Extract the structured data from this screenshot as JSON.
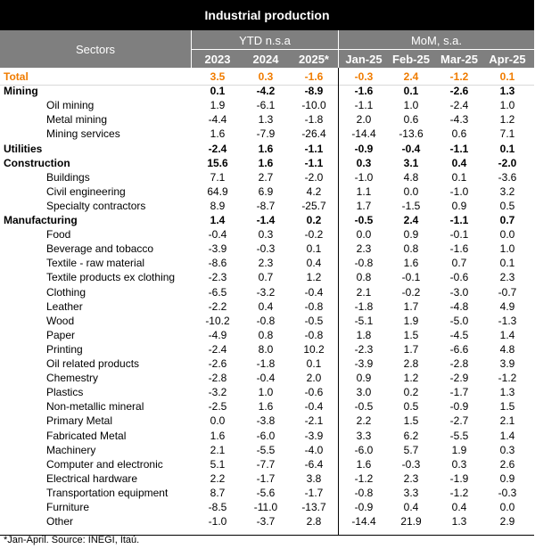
{
  "title": "Industrial production",
  "header": {
    "sectors_label": "Sectors",
    "ytd_label": "YTD n.s.a",
    "mom_label": "MoM, s.a.",
    "ytd_years": [
      "2023",
      "2024",
      "2025*"
    ],
    "mom_months": [
      "Jan-25",
      "Feb-25",
      "Mar-25",
      "Apr-25"
    ]
  },
  "colors": {
    "header_bg": "#7f7f7f",
    "title_bg": "#000000",
    "total_text": "#f07c00"
  },
  "rows": [
    {
      "name": "Total",
      "style": "total",
      "vals": [
        "3.5",
        "0.3",
        "-1.6",
        "-0.3",
        "2.4",
        "-1.2",
        "0.1"
      ]
    },
    {
      "name": "Mining",
      "style": "bold",
      "vals": [
        "0.1",
        "-4.2",
        "-8.9",
        "-1.6",
        "0.1",
        "-2.6",
        "1.3"
      ]
    },
    {
      "name": "Oil mining",
      "style": "sub",
      "vals": [
        "1.9",
        "-6.1",
        "-10.0",
        "-1.1",
        "1.0",
        "-2.4",
        "1.0"
      ]
    },
    {
      "name": "Metal mining",
      "style": "sub",
      "vals": [
        "-4.4",
        "1.3",
        "-1.8",
        "2.0",
        "0.6",
        "-4.3",
        "1.2"
      ]
    },
    {
      "name": "Mining services",
      "style": "sub",
      "vals": [
        "1.6",
        "-7.9",
        "-26.4",
        "-14.4",
        "-13.6",
        "0.6",
        "7.1"
      ]
    },
    {
      "name": "Utilities",
      "style": "bold",
      "vals": [
        "-2.4",
        "1.6",
        "-1.1",
        "-0.9",
        "-0.4",
        "-1.1",
        "0.1"
      ]
    },
    {
      "name": "Construction",
      "style": "bold",
      "vals": [
        "15.6",
        "1.6",
        "-1.1",
        "0.3",
        "3.1",
        "0.4",
        "-2.0"
      ]
    },
    {
      "name": "Buildings",
      "style": "sub",
      "vals": [
        "7.1",
        "2.7",
        "-2.0",
        "-1.0",
        "4.8",
        "0.1",
        "-3.6"
      ]
    },
    {
      "name": "Civil engineering",
      "style": "sub",
      "vals": [
        "64.9",
        "6.9",
        "4.2",
        "1.1",
        "0.0",
        "-1.0",
        "3.2"
      ]
    },
    {
      "name": "Specialty contractors",
      "style": "sub",
      "vals": [
        "8.9",
        "-8.7",
        "-25.7",
        "1.7",
        "-1.5",
        "0.9",
        "0.5"
      ]
    },
    {
      "name": "Manufacturing",
      "style": "bold",
      "vals": [
        "1.4",
        "-1.4",
        "0.2",
        "-0.5",
        "2.4",
        "-1.1",
        "0.7"
      ]
    },
    {
      "name": "Food",
      "style": "sub",
      "vals": [
        "-0.4",
        "0.3",
        "-0.2",
        "0.0",
        "0.9",
        "-0.1",
        "0.0"
      ]
    },
    {
      "name": "Beverage and tobacco",
      "style": "sub",
      "vals": [
        "-3.9",
        "-0.3",
        "0.1",
        "2.3",
        "0.8",
        "-1.6",
        "1.0"
      ]
    },
    {
      "name": "Textile - raw material",
      "style": "sub",
      "vals": [
        "-8.6",
        "2.3",
        "0.4",
        "-0.8",
        "1.6",
        "0.7",
        "0.1"
      ]
    },
    {
      "name": "Textile products ex clothing",
      "style": "sub",
      "vals": [
        "-2.3",
        "0.7",
        "1.2",
        "0.8",
        "-0.1",
        "-0.6",
        "2.3"
      ]
    },
    {
      "name": "Clothing",
      "style": "sub",
      "vals": [
        "-6.5",
        "-3.2",
        "-0.4",
        "2.1",
        "-0.2",
        "-3.0",
        "-0.7"
      ]
    },
    {
      "name": "Leather",
      "style": "sub",
      "vals": [
        "-2.2",
        "0.4",
        "-0.8",
        "-1.8",
        "1.7",
        "-4.8",
        "4.9"
      ]
    },
    {
      "name": "Wood",
      "style": "sub",
      "vals": [
        "-10.2",
        "-0.8",
        "-0.5",
        "-5.1",
        "1.9",
        "-5.0",
        "-1.3"
      ]
    },
    {
      "name": "Paper",
      "style": "sub",
      "vals": [
        "-4.9",
        "0.8",
        "-0.8",
        "1.8",
        "1.5",
        "-4.5",
        "1.4"
      ]
    },
    {
      "name": "Printing",
      "style": "sub",
      "vals": [
        "-2.4",
        "8.0",
        "10.2",
        "-2.3",
        "1.7",
        "-6.6",
        "4.8"
      ]
    },
    {
      "name": "Oil related products",
      "style": "sub",
      "vals": [
        "-2.6",
        "-1.8",
        "0.1",
        "-3.9",
        "2.8",
        "-2.8",
        "3.9"
      ]
    },
    {
      "name": "Chemestry",
      "style": "sub",
      "vals": [
        "-2.8",
        "-0.4",
        "2.0",
        "0.9",
        "1.2",
        "-2.9",
        "-1.2"
      ]
    },
    {
      "name": "Plastics",
      "style": "sub",
      "vals": [
        "-3.2",
        "1.0",
        "-0.6",
        "3.0",
        "0.2",
        "-1.7",
        "1.3"
      ]
    },
    {
      "name": "Non-metallic mineral",
      "style": "sub",
      "vals": [
        "-2.5",
        "1.6",
        "-0.4",
        "-0.5",
        "0.5",
        "-0.9",
        "1.5"
      ]
    },
    {
      "name": "Primary Metal",
      "style": "sub",
      "vals": [
        "0.0",
        "-3.8",
        "-2.1",
        "2.2",
        "1.5",
        "-2.7",
        "2.1"
      ]
    },
    {
      "name": "Fabricated Metal",
      "style": "sub",
      "vals": [
        "1.6",
        "-6.0",
        "-3.9",
        "3.3",
        "6.2",
        "-5.5",
        "1.4"
      ]
    },
    {
      "name": "Machinery",
      "style": "sub",
      "vals": [
        "2.1",
        "-5.5",
        "-4.0",
        "-6.0",
        "5.7",
        "1.9",
        "0.3"
      ]
    },
    {
      "name": "Computer and electronic",
      "style": "sub",
      "vals": [
        "5.1",
        "-7.7",
        "-6.4",
        "1.6",
        "-0.3",
        "0.3",
        "2.6"
      ]
    },
    {
      "name": "Electrical hardware",
      "style": "sub",
      "vals": [
        "2.2",
        "-1.7",
        "3.8",
        "-1.2",
        "2.3",
        "-1.9",
        "0.9"
      ]
    },
    {
      "name": "Transportation equipment",
      "style": "sub",
      "vals": [
        "8.7",
        "-5.6",
        "-1.7",
        "-0.8",
        "3.3",
        "-1.2",
        "-0.3"
      ]
    },
    {
      "name": "Furniture",
      "style": "sub",
      "vals": [
        "-8.5",
        "-11.0",
        "-13.7",
        "-0.9",
        "0.4",
        "0.4",
        "0.0"
      ]
    },
    {
      "name": "Other",
      "style": "sub",
      "vals": [
        "-1.0",
        "-3.7",
        "2.8",
        "-14.4",
        "21.9",
        "1.3",
        "2.9"
      ]
    }
  ],
  "footnote": "*Jan-April. Source: INEGI, Itaú."
}
